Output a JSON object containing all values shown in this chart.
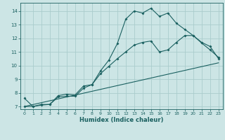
{
  "title": "",
  "xlabel": "Humidex (Indice chaleur)",
  "ylabel": "",
  "bg_color": "#cce5e5",
  "grid_color": "#aacccc",
  "line_color": "#1a6060",
  "xlim": [
    -0.5,
    23.5
  ],
  "ylim": [
    6.8,
    14.6
  ],
  "yticks": [
    7,
    8,
    9,
    10,
    11,
    12,
    13,
    14
  ],
  "xticks": [
    0,
    1,
    2,
    3,
    4,
    5,
    6,
    7,
    8,
    9,
    10,
    11,
    12,
    13,
    14,
    15,
    16,
    17,
    18,
    19,
    20,
    21,
    22,
    23
  ],
  "series1_x": [
    0,
    1,
    2,
    3,
    4,
    5,
    6,
    7,
    8,
    9,
    10,
    11,
    12,
    13,
    14,
    15,
    16,
    17,
    18,
    19,
    20,
    21,
    22,
    23
  ],
  "series1_y": [
    7.6,
    7.0,
    7.15,
    7.15,
    7.8,
    7.9,
    7.85,
    8.5,
    8.6,
    9.6,
    10.4,
    11.6,
    13.4,
    14.0,
    13.85,
    14.2,
    13.6,
    13.85,
    13.1,
    12.65,
    12.2,
    11.65,
    11.15,
    10.6
  ],
  "series2_x": [
    0,
    1,
    2,
    3,
    4,
    5,
    6,
    7,
    8,
    9,
    10,
    11,
    12,
    13,
    14,
    15,
    16,
    17,
    18,
    19,
    20,
    21,
    22,
    23
  ],
  "series2_y": [
    7.0,
    7.0,
    7.1,
    7.15,
    7.7,
    7.75,
    7.75,
    8.35,
    8.6,
    9.4,
    9.95,
    10.5,
    11.0,
    11.5,
    11.7,
    11.8,
    11.0,
    11.15,
    11.7,
    12.2,
    12.2,
    11.7,
    11.4,
    10.5
  ],
  "series3_x": [
    0,
    23
  ],
  "series3_y": [
    7.0,
    10.2
  ]
}
